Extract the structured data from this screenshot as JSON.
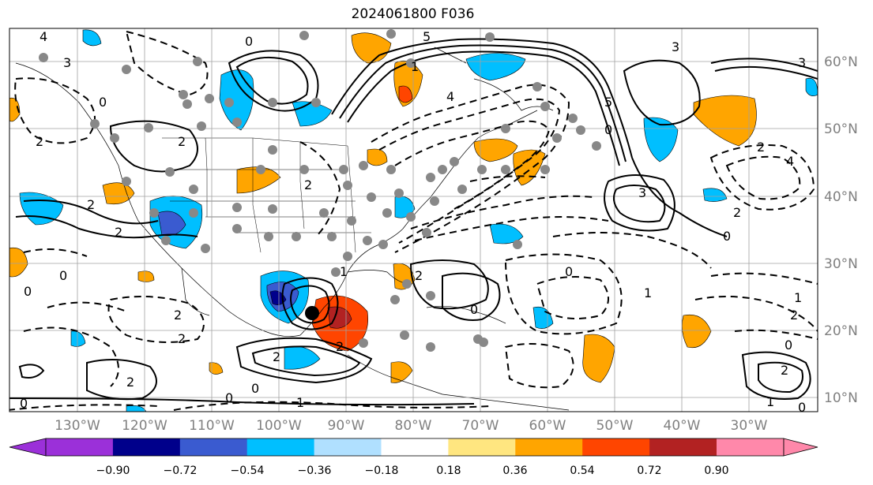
{
  "title": "2024061800 F036",
  "lat_labels": [
    "60°N",
    "50°N",
    "40°N",
    "30°N",
    "20°N",
    "10°N"
  ],
  "lon_labels": [
    "130°W",
    "120°W",
    "110°W",
    "100°W",
    "90°W",
    "80°W",
    "70°W",
    "60°W",
    "50°W",
    "40°W",
    "30°W"
  ],
  "colorbar": {
    "ticks": [
      "−0.90",
      "−0.72",
      "−0.54",
      "−0.36",
      "−0.18",
      "0.18",
      "0.36",
      "0.54",
      "0.72",
      "0.90"
    ],
    "colors": [
      "#9b30d9",
      "#00008b",
      "#3a5bd0",
      "#00bfff",
      "#b0e0ff",
      "#ffffff",
      "#ffe680",
      "#ffa500",
      "#ff4500",
      "#b22222",
      "#ff88aa"
    ]
  },
  "contour_labels": [
    "4",
    "3",
    "0",
    "2",
    "2",
    "2",
    "0",
    "2",
    "4",
    "5",
    "0",
    "5",
    "0",
    "3",
    "2",
    "0",
    "4",
    "2",
    "3",
    "3",
    "2",
    "0",
    "2",
    "0",
    "1",
    "0",
    "2",
    "0",
    "2",
    "2",
    "2",
    "0",
    "1",
    "2",
    "1",
    "0",
    "0",
    "2",
    "1",
    "1",
    "2",
    "0",
    "1"
  ],
  "markers": {
    "gray_dot_color": "#888888",
    "black_dot_color": "#000000"
  }
}
